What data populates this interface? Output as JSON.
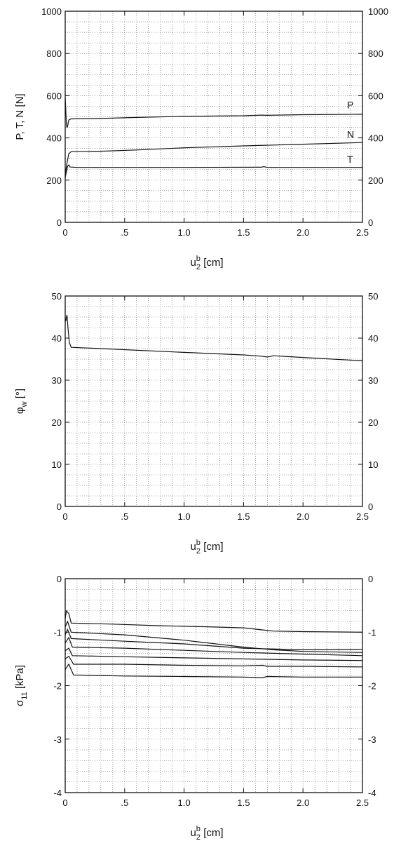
{
  "chart_data": [
    {
      "type": "line",
      "x_label": {
        "base": "u",
        "sub": "2",
        "sup": "b",
        "unit": " [cm]"
      },
      "y_label": {
        "text": "P, T, N [N]"
      },
      "xlim": [
        0,
        2.5
      ],
      "ylim": [
        0,
        1000
      ],
      "x_ticks": [
        0,
        0.5,
        1.0,
        1.5,
        2.0,
        2.5
      ],
      "x_tick_labels": [
        "0",
        ".5",
        "1.0",
        "1.5",
        "2.0",
        "2.5"
      ],
      "y_ticks": [
        0,
        200,
        400,
        600,
        800,
        1000
      ],
      "y_tick_labels": [
        "0",
        "200",
        "400",
        "600",
        "800",
        "1000"
      ],
      "x_minor_step": 0.1,
      "y_minor_step": 50,
      "grid": true,
      "series": [
        {
          "name": "P",
          "label_at": [
            2.37,
            540
          ],
          "points": [
            [
              0,
              590
            ],
            [
              0.003,
              560
            ],
            [
              0.01,
              465
            ],
            [
              0.015,
              450
            ],
            [
              0.02,
              455
            ],
            [
              0.03,
              485
            ],
            [
              0.05,
              490
            ],
            [
              0.3,
              492
            ],
            [
              0.6,
              497
            ],
            [
              1.0,
              502
            ],
            [
              1.5,
              505
            ],
            [
              1.65,
              508
            ],
            [
              1.7,
              507
            ],
            [
              2.0,
              510
            ],
            [
              2.5,
              512
            ]
          ]
        },
        {
          "name": "N",
          "label_at": [
            2.37,
            400
          ],
          "points": [
            [
              0,
              220
            ],
            [
              0.01,
              265
            ],
            [
              0.03,
              325
            ],
            [
              0.05,
              335
            ],
            [
              0.3,
              337
            ],
            [
              0.6,
              343
            ],
            [
              1.0,
              353
            ],
            [
              1.5,
              362
            ],
            [
              2.0,
              370
            ],
            [
              2.5,
              378
            ]
          ]
        },
        {
          "name": "T",
          "label_at": [
            2.37,
            283
          ],
          "points": [
            [
              0,
              210
            ],
            [
              0.005,
              225
            ],
            [
              0.02,
              265
            ],
            [
              0.03,
              272
            ],
            [
              0.04,
              262
            ],
            [
              0.1,
              260
            ],
            [
              1.0,
              260
            ],
            [
              1.65,
              261
            ],
            [
              1.67,
              264
            ],
            [
              1.7,
              260
            ],
            [
              2.5,
              260
            ]
          ]
        }
      ]
    },
    {
      "type": "line",
      "x_label": {
        "base": "u",
        "sub": "2",
        "sup": "b",
        "unit": " [cm]"
      },
      "y_label": {
        "base": "φ",
        "sub": "w",
        "unit": " [°]"
      },
      "xlim": [
        0,
        2.5
      ],
      "ylim": [
        0,
        50
      ],
      "x_ticks": [
        0,
        0.5,
        1.0,
        1.5,
        2.0,
        2.5
      ],
      "x_tick_labels": [
        "0",
        ".5",
        "1.0",
        "1.5",
        "2.0",
        "2.5"
      ],
      "y_ticks": [
        0,
        10,
        20,
        30,
        40,
        50
      ],
      "y_tick_labels": [
        "0",
        "10",
        "20",
        "30",
        "40",
        "50"
      ],
      "x_minor_step": 0.1,
      "y_minor_step": 2.5,
      "grid": true,
      "series": [
        {
          "points": [
            [
              0,
              45
            ],
            [
              0.005,
              44
            ],
            [
              0.015,
              45.5
            ],
            [
              0.025,
              42
            ],
            [
              0.035,
              39
            ],
            [
              0.05,
              37.8
            ],
            [
              0.3,
              37.5
            ],
            [
              1.0,
              36.6
            ],
            [
              1.5,
              36
            ],
            [
              1.65,
              35.7
            ],
            [
              1.7,
              35.5
            ],
            [
              1.75,
              35.8
            ],
            [
              2.0,
              35.4
            ],
            [
              2.5,
              34.6
            ]
          ]
        }
      ]
    },
    {
      "type": "line",
      "x_label": {
        "base": "u",
        "sub": "2",
        "sup": "b",
        "unit": " [cm]"
      },
      "y_label": {
        "base": "σ",
        "sub": "11",
        "unit": " [kPa]"
      },
      "xlim": [
        0,
        2.5
      ],
      "ylim": [
        -4,
        0
      ],
      "x_ticks": [
        0,
        0.5,
        1.0,
        1.5,
        2.0,
        2.5
      ],
      "x_tick_labels": [
        "0",
        ".5",
        "1.0",
        "1.5",
        "2.0",
        "2.5"
      ],
      "y_ticks": [
        0,
        -1,
        -2,
        -3,
        -4
      ],
      "y_tick_labels": [
        "0",
        "-1",
        "-2",
        "-3",
        "-4"
      ],
      "x_minor_step": 0.1,
      "y_minor_step": 0.2,
      "grid": true,
      "series": [
        {
          "points": [
            [
              0,
              -0.75
            ],
            [
              0.01,
              -0.6
            ],
            [
              0.03,
              -0.65
            ],
            [
              0.05,
              -0.83
            ],
            [
              0.4,
              -0.85
            ],
            [
              0.8,
              -0.88
            ],
            [
              1.2,
              -0.9
            ],
            [
              1.5,
              -0.92
            ],
            [
              1.75,
              -0.98
            ],
            [
              2.0,
              -0.99
            ],
            [
              2.5,
              -1.0
            ]
          ]
        },
        {
          "points": [
            [
              0,
              -0.9
            ],
            [
              0.02,
              -0.8
            ],
            [
              0.05,
              -1.0
            ],
            [
              0.5,
              -1.05
            ],
            [
              1.0,
              -1.15
            ],
            [
              1.5,
              -1.28
            ],
            [
              1.75,
              -1.33
            ],
            [
              2.0,
              -1.36
            ],
            [
              2.5,
              -1.38
            ]
          ]
        },
        {
          "points": [
            [
              0,
              -1.05
            ],
            [
              0.02,
              -0.95
            ],
            [
              0.05,
              -1.12
            ],
            [
              0.5,
              -1.17
            ],
            [
              1.0,
              -1.22
            ],
            [
              1.5,
              -1.3
            ],
            [
              2.0,
              -1.33
            ],
            [
              2.5,
              -1.32
            ]
          ]
        },
        {
          "points": [
            [
              0,
              -1.2
            ],
            [
              0.03,
              -1.1
            ],
            [
              0.06,
              -1.28
            ],
            [
              0.5,
              -1.3
            ],
            [
              1.0,
              -1.34
            ],
            [
              1.5,
              -1.38
            ],
            [
              2.0,
              -1.41
            ],
            [
              2.5,
              -1.44
            ]
          ]
        },
        {
          "points": [
            [
              0,
              -1.35
            ],
            [
              0.03,
              -1.3
            ],
            [
              0.06,
              -1.44
            ],
            [
              0.5,
              -1.46
            ],
            [
              1.0,
              -1.48
            ],
            [
              1.5,
              -1.5
            ],
            [
              2.0,
              -1.52
            ],
            [
              2.5,
              -1.53
            ]
          ]
        },
        {
          "points": [
            [
              0,
              -1.5
            ],
            [
              0.03,
              -1.45
            ],
            [
              0.07,
              -1.6
            ],
            [
              0.5,
              -1.6
            ],
            [
              1.0,
              -1.62
            ],
            [
              1.5,
              -1.63
            ],
            [
              1.66,
              -1.62
            ],
            [
              1.7,
              -1.64
            ],
            [
              2.0,
              -1.64
            ],
            [
              2.5,
              -1.65
            ]
          ]
        },
        {
          "points": [
            [
              0,
              -1.7
            ],
            [
              0.03,
              -1.6
            ],
            [
              0.07,
              -1.8
            ],
            [
              0.5,
              -1.82
            ],
            [
              1.0,
              -1.83
            ],
            [
              1.5,
              -1.84
            ],
            [
              1.66,
              -1.85
            ],
            [
              1.7,
              -1.83
            ],
            [
              2.0,
              -1.84
            ],
            [
              2.5,
              -1.84
            ]
          ]
        }
      ]
    }
  ]
}
